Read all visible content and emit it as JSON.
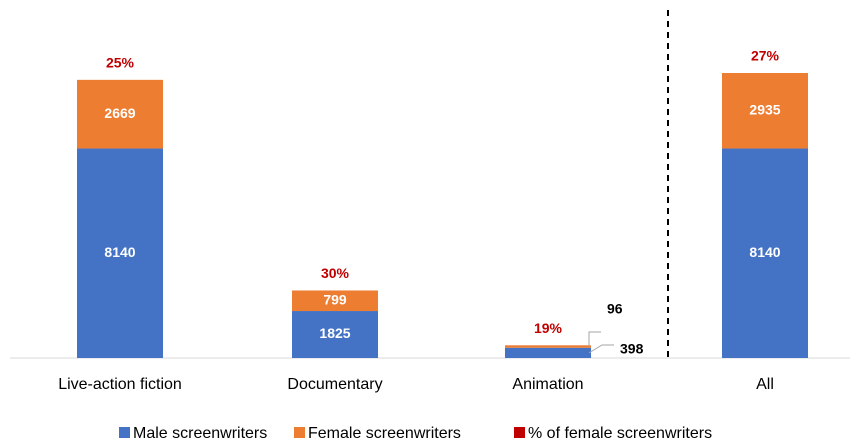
{
  "chart_data": {
    "type": "bar",
    "stacked": true,
    "categories": [
      "Live-action fiction",
      "Documentary",
      "Animation",
      "All"
    ],
    "series": [
      {
        "name": "Male screenwriters",
        "color": "#4472c4",
        "values": [
          8140,
          1825,
          398,
          8140
        ]
      },
      {
        "name": "Female screenwriters",
        "color": "#ed7d31",
        "values": [
          2669,
          799,
          96,
          2935
        ]
      },
      {
        "name": "% of female screenwriters",
        "color": "#c00000",
        "values": [
          25,
          30,
          19,
          27
        ],
        "value_labels": [
          "25%",
          "30%",
          "19%",
          "27%"
        ]
      }
    ]
  }
}
